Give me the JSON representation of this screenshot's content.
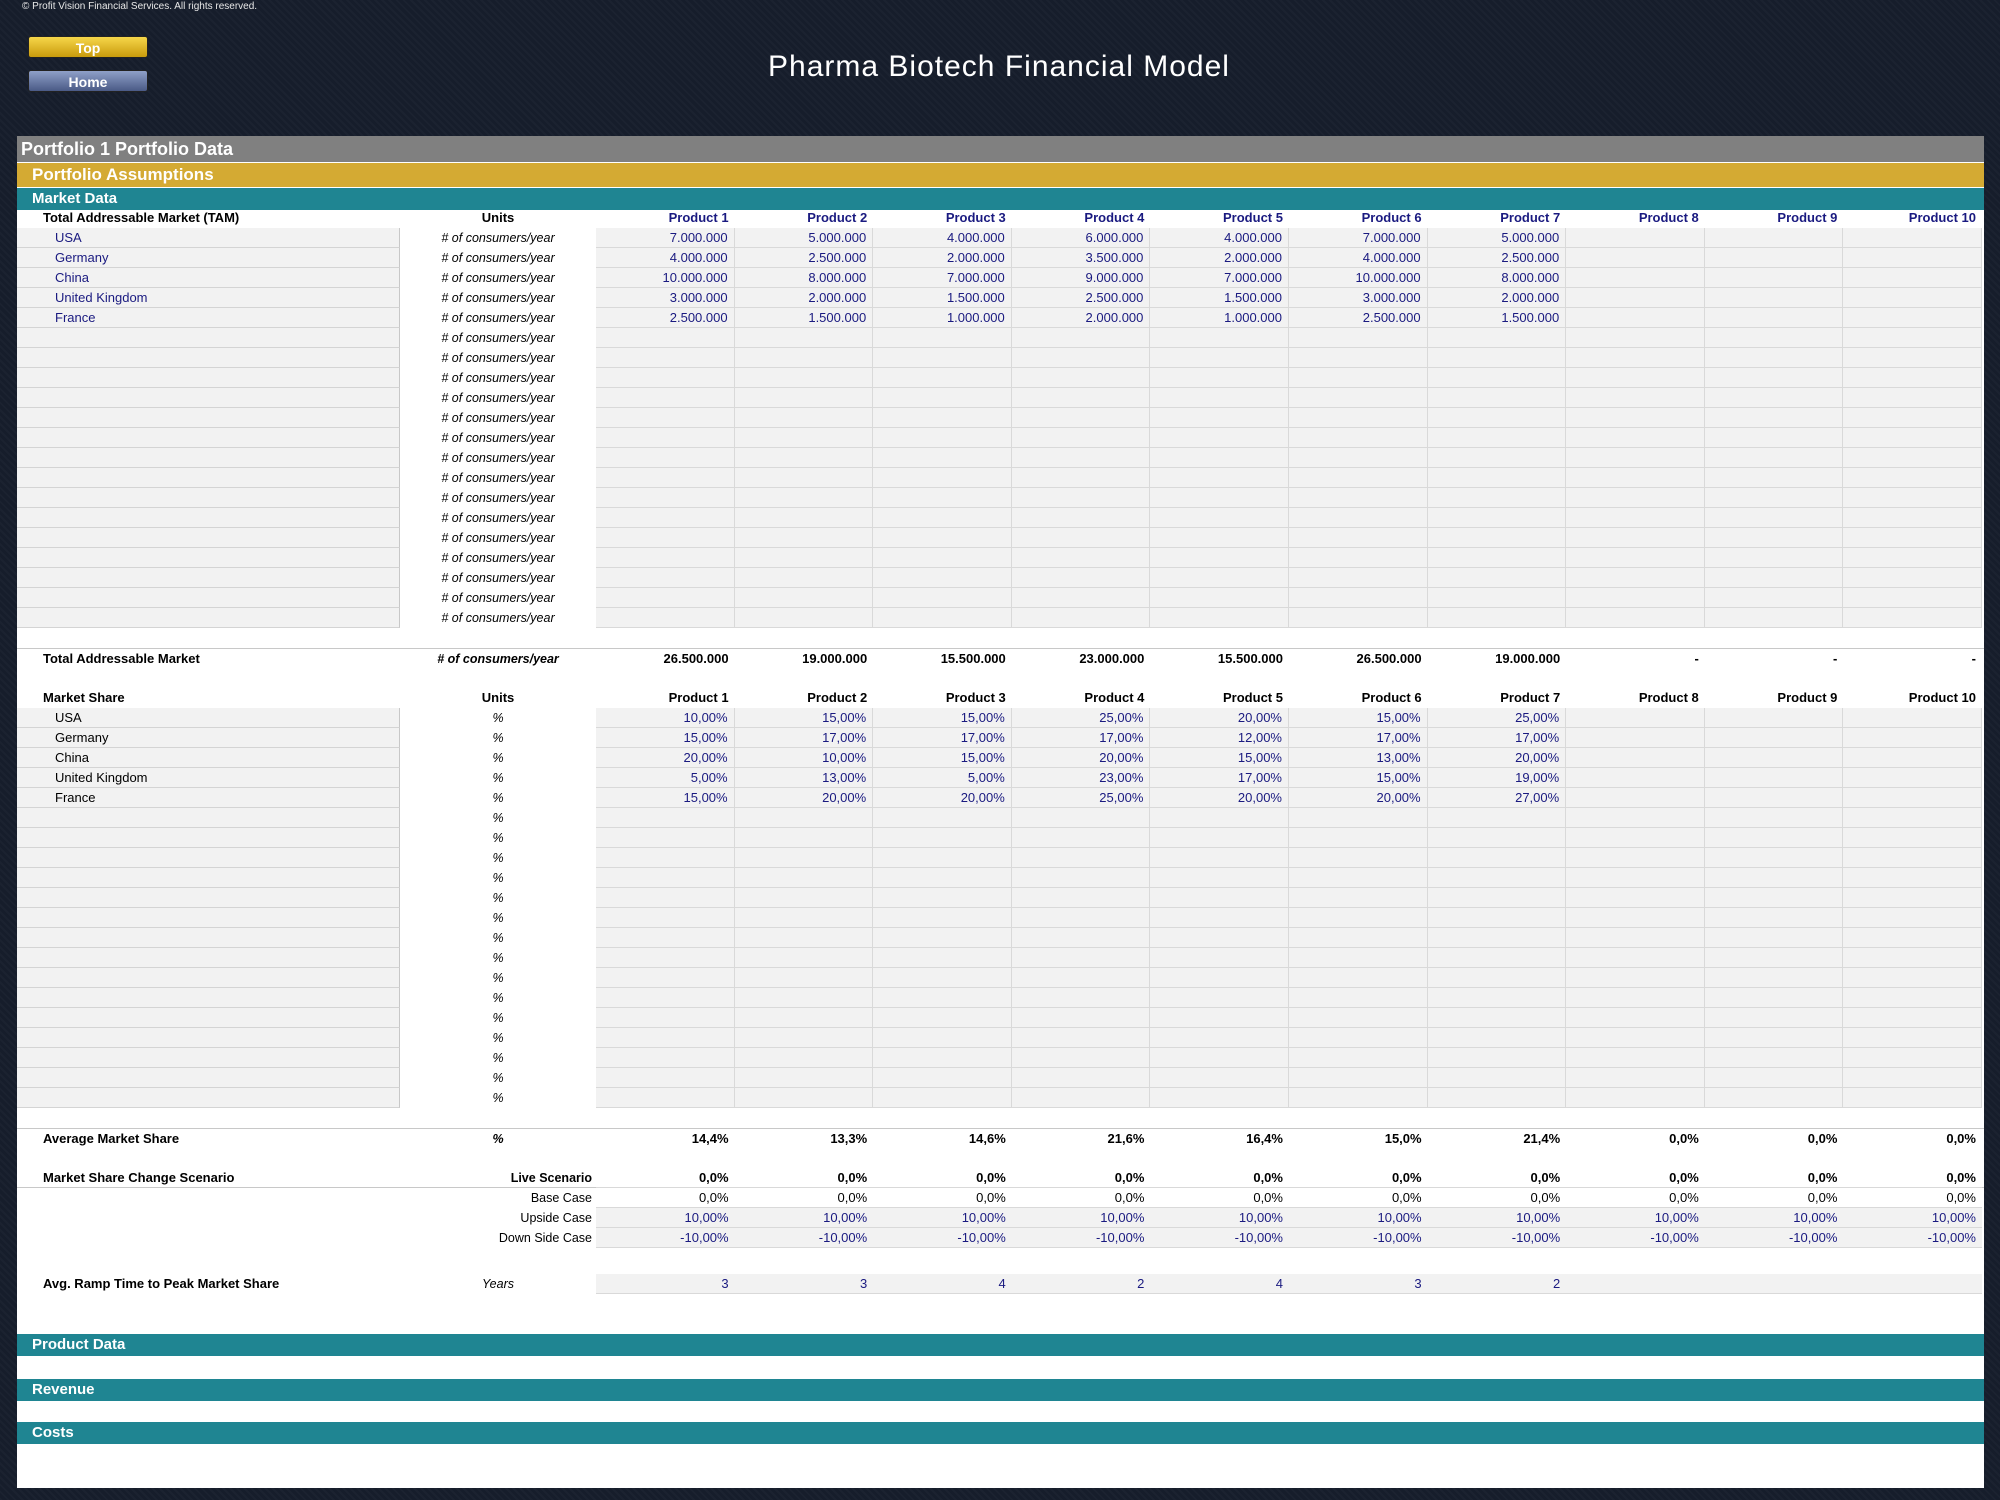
{
  "copyright": "© Profit Vision Financial Services. All rights reserved.",
  "nav": {
    "top_label": "Top",
    "home_label": "Home"
  },
  "title": "Pharma Biotech Financial Model",
  "bands": {
    "portfolio": "Portfolio 1 Portfolio Data",
    "assumptions": "Portfolio Assumptions",
    "market_data": "Market Data",
    "product_data": "Product Data",
    "revenue": "Revenue",
    "costs": "Costs"
  },
  "products": [
    "Product 1",
    "Product 2",
    "Product 3",
    "Product 4",
    "Product 5",
    "Product 6",
    "Product 7",
    "Product 8",
    "Product 9",
    "Product 10"
  ],
  "tam": {
    "header": "Total Addressable Market (TAM)",
    "units_header": "Units",
    "unit": "# of consumers/year",
    "rows": [
      {
        "name": "USA",
        "values": [
          "7.000.000",
          "5.000.000",
          "4.000.000",
          "6.000.000",
          "4.000.000",
          "7.000.000",
          "5.000.000",
          "",
          "",
          ""
        ]
      },
      {
        "name": "Germany",
        "values": [
          "4.000.000",
          "2.500.000",
          "2.000.000",
          "3.500.000",
          "2.000.000",
          "4.000.000",
          "2.500.000",
          "",
          "",
          ""
        ]
      },
      {
        "name": "China",
        "values": [
          "10.000.000",
          "8.000.000",
          "7.000.000",
          "9.000.000",
          "7.000.000",
          "10.000.000",
          "8.000.000",
          "",
          "",
          ""
        ]
      },
      {
        "name": "United Kingdom",
        "values": [
          "3.000.000",
          "2.000.000",
          "1.500.000",
          "2.500.000",
          "1.500.000",
          "3.000.000",
          "2.000.000",
          "",
          "",
          ""
        ]
      },
      {
        "name": "France",
        "values": [
          "2.500.000",
          "1.500.000",
          "1.000.000",
          "2.000.000",
          "1.000.000",
          "2.500.000",
          "1.500.000",
          "",
          "",
          ""
        ]
      }
    ],
    "empty_rows": 15,
    "total": {
      "name": "Total Addressable Market",
      "unit": "# of consumers/year",
      "values": [
        "26.500.000",
        "19.000.000",
        "15.500.000",
        "23.000.000",
        "15.500.000",
        "26.500.000",
        "19.000.000",
        "-",
        "-",
        "-"
      ]
    }
  },
  "share": {
    "header": "Market Share",
    "units_header": "Units",
    "unit": "%",
    "rows": [
      {
        "name": "USA",
        "values": [
          "10,00%",
          "15,00%",
          "15,00%",
          "25,00%",
          "20,00%",
          "15,00%",
          "25,00%",
          "",
          "",
          ""
        ]
      },
      {
        "name": "Germany",
        "values": [
          "15,00%",
          "17,00%",
          "17,00%",
          "17,00%",
          "12,00%",
          "17,00%",
          "17,00%",
          "",
          "",
          ""
        ]
      },
      {
        "name": "China",
        "values": [
          "20,00%",
          "10,00%",
          "15,00%",
          "20,00%",
          "15,00%",
          "13,00%",
          "20,00%",
          "",
          "",
          ""
        ]
      },
      {
        "name": "United Kingdom",
        "values": [
          "5,00%",
          "13,00%",
          "5,00%",
          "23,00%",
          "17,00%",
          "15,00%",
          "19,00%",
          "",
          "",
          ""
        ]
      },
      {
        "name": "France",
        "values": [
          "15,00%",
          "20,00%",
          "20,00%",
          "25,00%",
          "20,00%",
          "20,00%",
          "27,00%",
          "",
          "",
          ""
        ]
      }
    ],
    "empty_rows": 15,
    "average": {
      "name": "Average Market Share",
      "unit": "%",
      "values": [
        "14,4%",
        "13,3%",
        "14,6%",
        "21,6%",
        "16,4%",
        "15,0%",
        "21,4%",
        "0,0%",
        "0,0%",
        "0,0%"
      ]
    }
  },
  "scenario": {
    "name": "Market Share Change Scenario",
    "rows": [
      {
        "label": "Live Scenario",
        "values": [
          "0,0%",
          "0,0%",
          "0,0%",
          "0,0%",
          "0,0%",
          "0,0%",
          "0,0%",
          "0,0%",
          "0,0%",
          "0,0%"
        ]
      },
      {
        "label": "Base Case",
        "values": [
          "0,0%",
          "0,0%",
          "0,0%",
          "0,0%",
          "0,0%",
          "0,0%",
          "0,0%",
          "0,0%",
          "0,0%",
          "0,0%"
        ]
      },
      {
        "label": "Upside Case",
        "values": [
          "10,00%",
          "10,00%",
          "10,00%",
          "10,00%",
          "10,00%",
          "10,00%",
          "10,00%",
          "10,00%",
          "10,00%",
          "10,00%"
        ]
      },
      {
        "label": "Down Side Case",
        "values": [
          "-10,00%",
          "-10,00%",
          "-10,00%",
          "-10,00%",
          "-10,00%",
          "-10,00%",
          "-10,00%",
          "-10,00%",
          "-10,00%",
          "-10,00%"
        ]
      }
    ]
  },
  "ramp": {
    "name": "Avg. Ramp Time to Peak Market Share",
    "unit": "Years",
    "values": [
      "3",
      "3",
      "4",
      "2",
      "4",
      "3",
      "2",
      "",
      "",
      ""
    ]
  }
}
